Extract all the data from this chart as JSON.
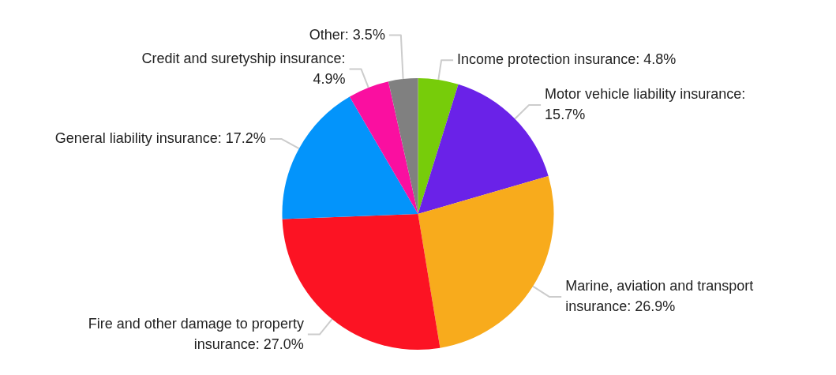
{
  "chart_data": {
    "type": "pie",
    "categories": [
      "Income protection insurance: 4.8%",
      "Motor vehicle liability insurance: 15.7%",
      "Marine, aviation and transport insurance: 26.9%",
      "Fire and other damage to property insurance: 27.0%",
      "General liability insurance: 17.2%",
      "Credit and suretyship insurance: 4.9%",
      "Other: 3.5%"
    ],
    "values": [
      4.8,
      15.7,
      26.9,
      27.0,
      17.2,
      4.9,
      3.5
    ],
    "colors": [
      "#77cc0a",
      "#6a22e8",
      "#f8ab1c",
      "#fc1323",
      "#0394fb",
      "#fa0fa0",
      "#808080"
    ],
    "legend": false
  }
}
